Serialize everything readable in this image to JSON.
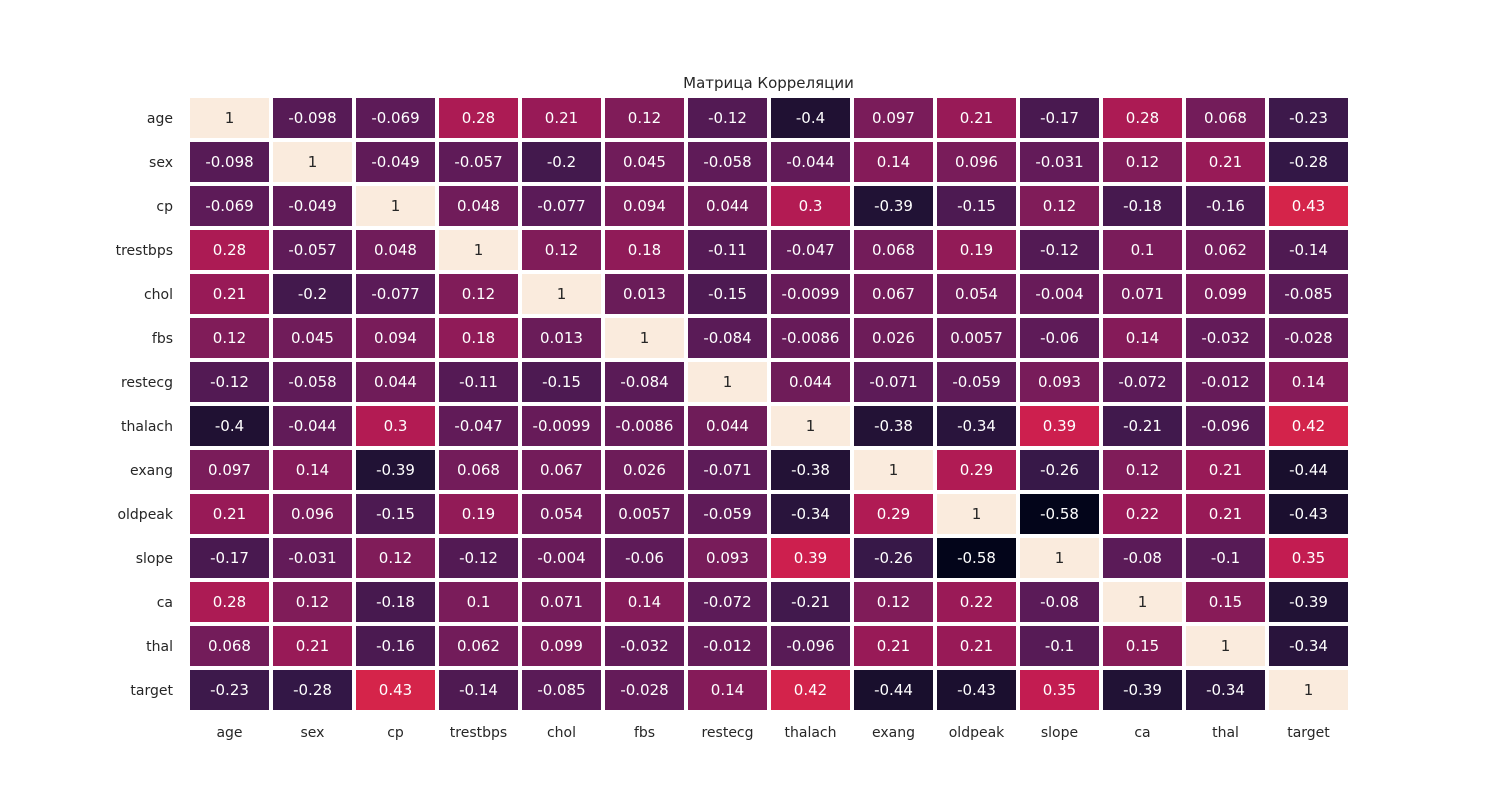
{
  "chart_data": {
    "type": "heatmap",
    "title": "Матрица Корреляции",
    "labels": [
      "age",
      "sex",
      "cp",
      "trestbps",
      "chol",
      "fbs",
      "restecg",
      "thalach",
      "exang",
      "oldpeak",
      "slope",
      "ca",
      "thal",
      "target"
    ],
    "value_labels": [
      [
        "1",
        "-0.098",
        "-0.069",
        "0.28",
        "0.21",
        "0.12",
        "-0.12",
        "-0.4",
        "0.097",
        "0.21",
        "-0.17",
        "0.28",
        "0.068",
        "-0.23"
      ],
      [
        "-0.098",
        "1",
        "-0.049",
        "-0.057",
        "-0.2",
        "0.045",
        "-0.058",
        "-0.044",
        "0.14",
        "0.096",
        "-0.031",
        "0.12",
        "0.21",
        "-0.28"
      ],
      [
        "-0.069",
        "-0.049",
        "1",
        "0.048",
        "-0.077",
        "0.094",
        "0.044",
        "0.3",
        "-0.39",
        "-0.15",
        "0.12",
        "-0.18",
        "-0.16",
        "0.43"
      ],
      [
        "0.28",
        "-0.057",
        "0.048",
        "1",
        "0.12",
        "0.18",
        "-0.11",
        "-0.047",
        "0.068",
        "0.19",
        "-0.12",
        "0.1",
        "0.062",
        "-0.14"
      ],
      [
        "0.21",
        "-0.2",
        "-0.077",
        "0.12",
        "1",
        "0.013",
        "-0.15",
        "-0.0099",
        "0.067",
        "0.054",
        "-0.004",
        "0.071",
        "0.099",
        "-0.085"
      ],
      [
        "0.12",
        "0.045",
        "0.094",
        "0.18",
        "0.013",
        "1",
        "-0.084",
        "-0.0086",
        "0.026",
        "0.0057",
        "-0.06",
        "0.14",
        "-0.032",
        "-0.028"
      ],
      [
        "-0.12",
        "-0.058",
        "0.044",
        "-0.11",
        "-0.15",
        "-0.084",
        "1",
        "0.044",
        "-0.071",
        "-0.059",
        "0.093",
        "-0.072",
        "-0.012",
        "0.14"
      ],
      [
        "-0.4",
        "-0.044",
        "0.3",
        "-0.047",
        "-0.0099",
        "-0.0086",
        "0.044",
        "1",
        "-0.38",
        "-0.34",
        "0.39",
        "-0.21",
        "-0.096",
        "0.42"
      ],
      [
        "0.097",
        "0.14",
        "-0.39",
        "0.068",
        "0.067",
        "0.026",
        "-0.071",
        "-0.38",
        "1",
        "0.29",
        "-0.26",
        "0.12",
        "0.21",
        "-0.44"
      ],
      [
        "0.21",
        "0.096",
        "-0.15",
        "0.19",
        "0.054",
        "0.0057",
        "-0.059",
        "-0.34",
        "0.29",
        "1",
        "-0.58",
        "0.22",
        "0.21",
        "-0.43"
      ],
      [
        "-0.17",
        "-0.031",
        "0.12",
        "-0.12",
        "-0.004",
        "-0.06",
        "0.093",
        "0.39",
        "-0.26",
        "-0.58",
        "1",
        "-0.08",
        "-0.1",
        "0.35"
      ],
      [
        "0.28",
        "0.12",
        "-0.18",
        "0.1",
        "0.071",
        "0.14",
        "-0.072",
        "-0.21",
        "0.12",
        "0.22",
        "-0.08",
        "1",
        "0.15",
        "-0.39"
      ],
      [
        "0.068",
        "0.21",
        "-0.16",
        "0.062",
        "0.099",
        "-0.032",
        "-0.012",
        "-0.096",
        "0.21",
        "0.21",
        "-0.1",
        "0.15",
        "1",
        "-0.34"
      ],
      [
        "-0.23",
        "-0.28",
        "0.43",
        "-0.14",
        "-0.085",
        "-0.028",
        "0.14",
        "0.42",
        "-0.44",
        "-0.43",
        "0.35",
        "-0.39",
        "-0.34",
        "1"
      ]
    ],
    "colormap": "rocket",
    "vmin": -0.58,
    "vmax": 1,
    "colorbar": false,
    "annotations": true
  }
}
